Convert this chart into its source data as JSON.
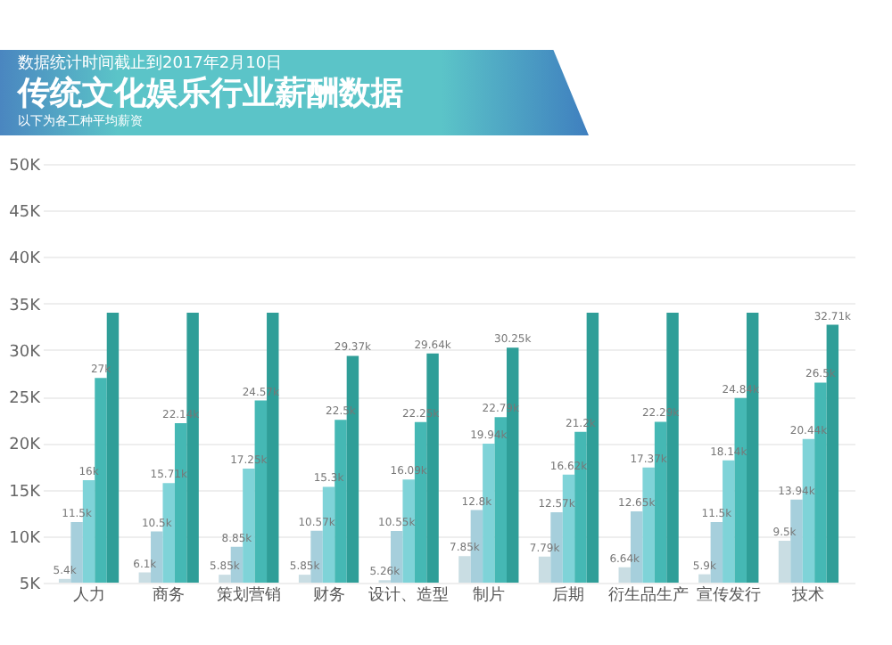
{
  "chart_data": {
    "type": "bar",
    "title": "传统文化娱乐行业薪酬数据",
    "subtitle": "数据统计时间截止到2017年2月10日",
    "annotations": [
      "以下为各工种平均薪资"
    ],
    "categories": [
      "人力",
      "商务",
      "策划营销",
      "财务",
      "设计、造型",
      "制片",
      "后期",
      "衍生品生产",
      "宣传发行",
      "技术"
    ],
    "series": [
      {
        "color": "#c9dde3",
        "values": [
          5.4,
          6.1,
          5.85,
          5.85,
          5.26,
          7.85,
          7.79,
          6.64,
          5.9,
          9.5
        ],
        "value_labels": [
          "5.4k",
          "6.1k",
          "5.85k",
          "5.85k",
          "5.26k",
          "7.85k",
          "7.79k",
          "6.64k",
          "5.9k",
          "9.5k"
        ]
      },
      {
        "color": "#a6cfdc",
        "values": [
          11.5,
          10.5,
          8.85,
          10.57,
          10.55,
          12.8,
          12.57,
          12.65,
          11.5,
          13.94
        ],
        "value_labels": [
          "11.5k",
          "10.5k",
          "8.85k",
          "10.57k",
          "10.55k",
          "12.8k",
          "12.57k",
          "12.65k",
          "11.5k",
          "13.94k"
        ]
      },
      {
        "color": "#7fd3d8",
        "values": [
          16,
          15.71,
          17.25,
          15.3,
          16.09,
          19.94,
          16.62,
          17.37,
          18.14,
          20.44
        ],
        "value_labels": [
          "16k",
          "15.71k",
          "17.25k",
          "15.3k",
          "16.09k",
          "19.94k",
          "16.62k",
          "17.37k",
          "18.14k",
          "20.44k"
        ]
      },
      {
        "color": "#45b8b4",
        "values": [
          27,
          22.14,
          24.57,
          22.5,
          22.25,
          22.79,
          21.2,
          22.29,
          24.84,
          26.5
        ],
        "value_labels": [
          "27k",
          "22.14k",
          "24.57k",
          "22.5k",
          "22.25k",
          "22.79k",
          "21.2k",
          "22.29k",
          "24.84k",
          "26.5k"
        ]
      },
      {
        "color": "#2f9e98",
        "values": [
          34,
          34,
          34,
          29.37,
          29.64,
          30.25,
          34,
          34,
          34,
          32.71
        ],
        "value_labels": [
          null,
          null,
          null,
          "29.37k",
          "29.64k",
          "30.25k",
          null,
          null,
          null,
          "32.71k"
        ]
      }
    ],
    "ylim": [
      5,
      50
    ],
    "yticks": [
      {
        "value": 5,
        "label": "5K"
      },
      {
        "value": 10,
        "label": "10K"
      },
      {
        "value": 15,
        "label": "15K"
      },
      {
        "value": 20,
        "label": "20K"
      },
      {
        "value": 25,
        "label": "25K"
      },
      {
        "value": 30,
        "label": "30K"
      },
      {
        "value": 35,
        "label": "35K"
      },
      {
        "value": 40,
        "label": "40K"
      },
      {
        "value": 45,
        "label": "45K"
      },
      {
        "value": 50,
        "label": "50K"
      }
    ],
    "grid": "y"
  }
}
